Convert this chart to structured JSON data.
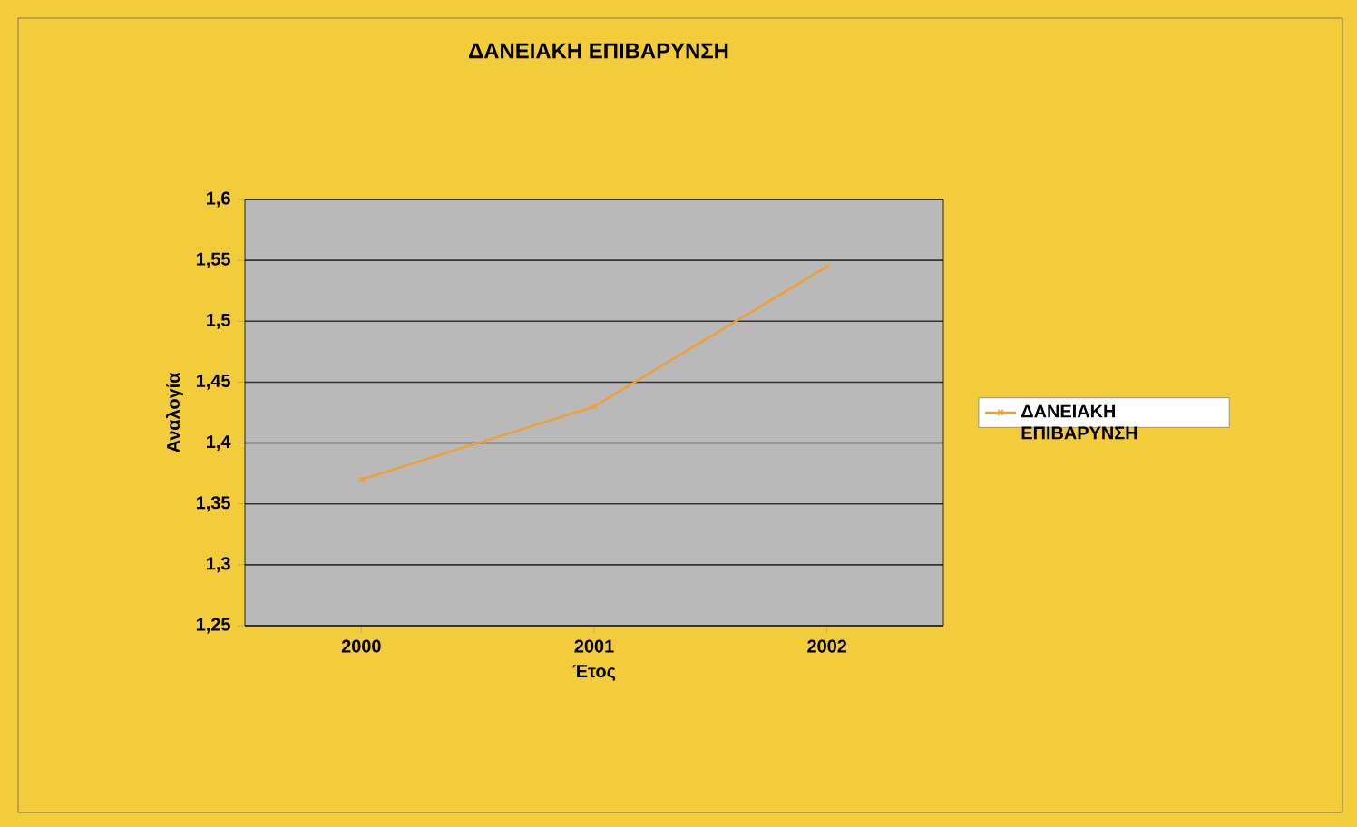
{
  "chart_data": {
    "type": "line",
    "title": "ΔΑΝΕΙΑΚΗ ΕΠΙΒΑΡΥΝΣΗ",
    "xlabel": "Έτος",
    "ylabel": "Αναλογία",
    "categories": [
      "2000",
      "2001",
      "2002"
    ],
    "series": [
      {
        "name": "ΔΑΝΕΙΑΚΗ ΕΠΙΒΑΡΥΝΣΗ",
        "color": "#f0a030",
        "values": [
          1.37,
          1.43,
          1.545
        ]
      }
    ],
    "ylim": [
      1.25,
      1.6
    ],
    "yticks": [
      {
        "value": 1.25,
        "label": "1,25"
      },
      {
        "value": 1.3,
        "label": "1,3"
      },
      {
        "value": 1.35,
        "label": "1,35"
      },
      {
        "value": 1.4,
        "label": "1,4"
      },
      {
        "value": 1.45,
        "label": "1,45"
      },
      {
        "value": 1.5,
        "label": "1,5"
      },
      {
        "value": 1.55,
        "label": "1,55"
      },
      {
        "value": 1.6,
        "label": "1,6"
      }
    ],
    "grid": "y",
    "legend": "right",
    "marker": "cross",
    "line_style": "solid"
  }
}
